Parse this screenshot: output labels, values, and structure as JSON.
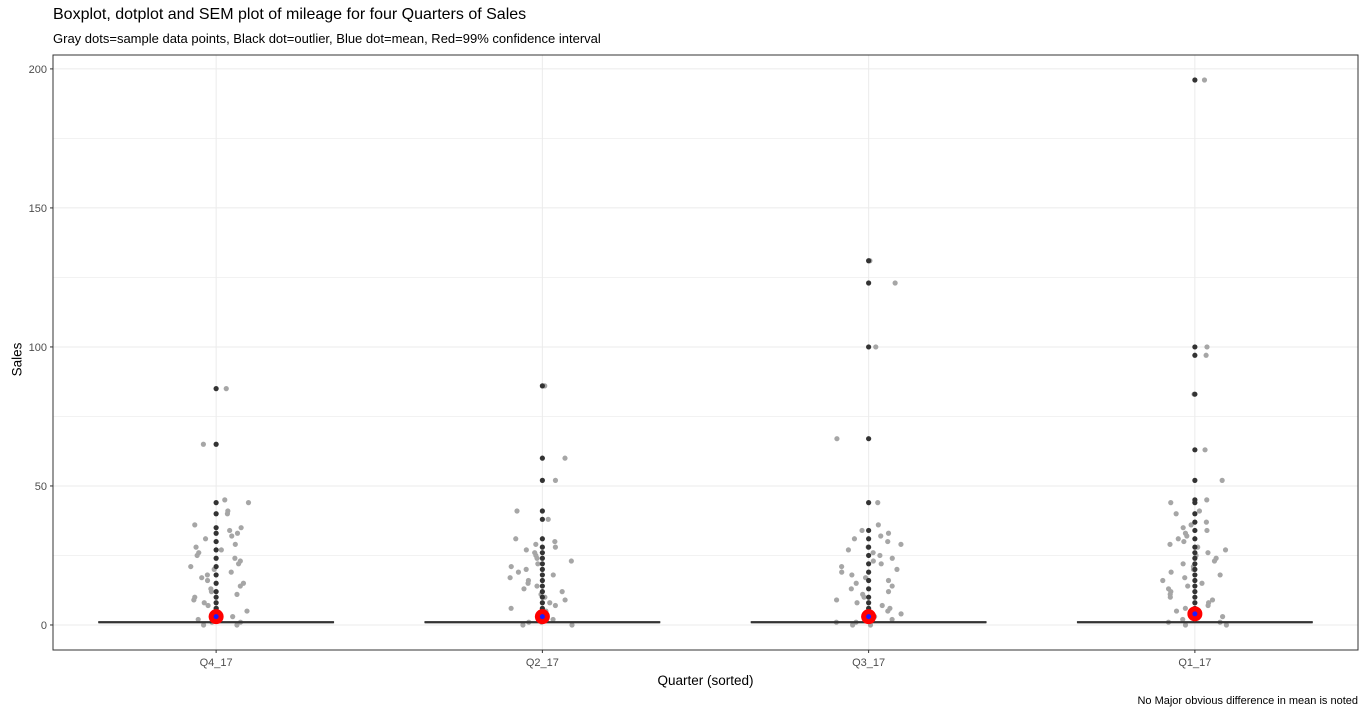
{
  "chart_data": {
    "type": "boxplot+dotplot",
    "title": "Boxplot, dotplot and SEM plot of mileage for four Quarters of Sales",
    "subtitle": "Gray dots=sample data points, Black dot=outlier, Blue dot=mean, Red=99% confidence interval",
    "xlabel": "Quarter (sorted)",
    "ylabel": "Sales",
    "caption": "No Major obvious difference in mean is noted",
    "categories": [
      "Q4_17",
      "Q2_17",
      "Q3_17",
      "Q1_17"
    ],
    "ylim": [
      -9,
      205
    ],
    "yticks": [
      0,
      50,
      100,
      150,
      200
    ],
    "ytick_labels": [
      "0",
      "50",
      "100",
      "150",
      "200"
    ],
    "grid": true,
    "colors": {
      "sample_points": "#a6a6a6",
      "outliers": "#333333",
      "mean": "#1a1aff",
      "confidence_interval": "#ff0000",
      "box": "#333333"
    },
    "series": [
      {
        "category": "Q4_17",
        "median": 1,
        "q1": 1,
        "q3": 1,
        "mean": 3,
        "ci99": [
          1.5,
          4.5
        ],
        "outliers": [
          85,
          65,
          44,
          40,
          35,
          33,
          30,
          27,
          24,
          21,
          18,
          15,
          12,
          10,
          8,
          6,
          4,
          3,
          2
        ],
        "jitter_points": [
          85,
          65,
          45,
          44,
          41,
          40,
          36,
          35,
          34,
          33,
          32,
          31,
          29,
          28,
          27,
          26,
          25,
          24,
          23,
          22,
          21,
          20,
          19,
          18,
          17,
          16,
          15,
          14,
          13,
          12,
          11,
          10,
          9,
          8,
          7,
          6,
          5,
          4,
          3,
          2,
          1,
          1,
          0,
          0
        ]
      },
      {
        "category": "Q2_17",
        "median": 1,
        "q1": 1,
        "q3": 1,
        "mean": 3,
        "ci99": [
          1.5,
          4.5
        ],
        "outliers": [
          86,
          60,
          52,
          41,
          38,
          31,
          28,
          26,
          24,
          22,
          20,
          18,
          16,
          14,
          12,
          10,
          8,
          6,
          4,
          3,
          2
        ],
        "jitter_points": [
          86,
          60,
          52,
          41,
          38,
          31,
          30,
          29,
          28,
          27,
          26,
          25,
          24,
          23,
          22,
          21,
          20,
          19,
          18,
          17,
          16,
          15,
          14,
          13,
          12,
          11,
          10,
          9,
          8,
          7,
          6,
          5,
          4,
          3,
          2,
          1,
          1,
          0,
          0
        ]
      },
      {
        "category": "Q3_17",
        "median": 1,
        "q1": 1,
        "q3": 1,
        "mean": 3,
        "ci99": [
          1.5,
          4.5
        ],
        "outliers": [
          131,
          123,
          100,
          67,
          44,
          34,
          31,
          28,
          25,
          22,
          19,
          16,
          13,
          10,
          8,
          6,
          4,
          3,
          2
        ],
        "jitter_points": [
          131,
          123,
          100,
          67,
          44,
          36,
          34,
          33,
          32,
          31,
          30,
          29,
          28,
          27,
          26,
          25,
          24,
          23,
          22,
          21,
          20,
          19,
          18,
          17,
          16,
          15,
          14,
          13,
          12,
          11,
          10,
          9,
          8,
          7,
          6,
          5,
          4,
          3,
          2,
          1,
          1,
          0,
          0
        ]
      },
      {
        "category": "Q1_17",
        "median": 1,
        "q1": 1,
        "q3": 1,
        "mean": 4,
        "ci99": [
          2,
          5.5
        ],
        "outliers": [
          196,
          100,
          97,
          83,
          63,
          52,
          45,
          44,
          40,
          37,
          34,
          31,
          28,
          26,
          24,
          22,
          20,
          18,
          16,
          14,
          12,
          10,
          8,
          6,
          4,
          3,
          2
        ],
        "jitter_points": [
          196,
          100,
          97,
          83,
          63,
          52,
          45,
          44,
          41,
          40,
          37,
          36,
          35,
          34,
          33,
          32,
          31,
          30,
          29,
          28,
          27,
          26,
          25,
          24,
          23,
          22,
          21,
          20,
          19,
          18,
          17,
          16,
          15,
          14,
          13,
          12,
          11,
          10,
          9,
          8,
          7,
          6,
          5,
          4,
          3,
          2,
          1,
          1,
          0,
          0
        ]
      }
    ]
  }
}
